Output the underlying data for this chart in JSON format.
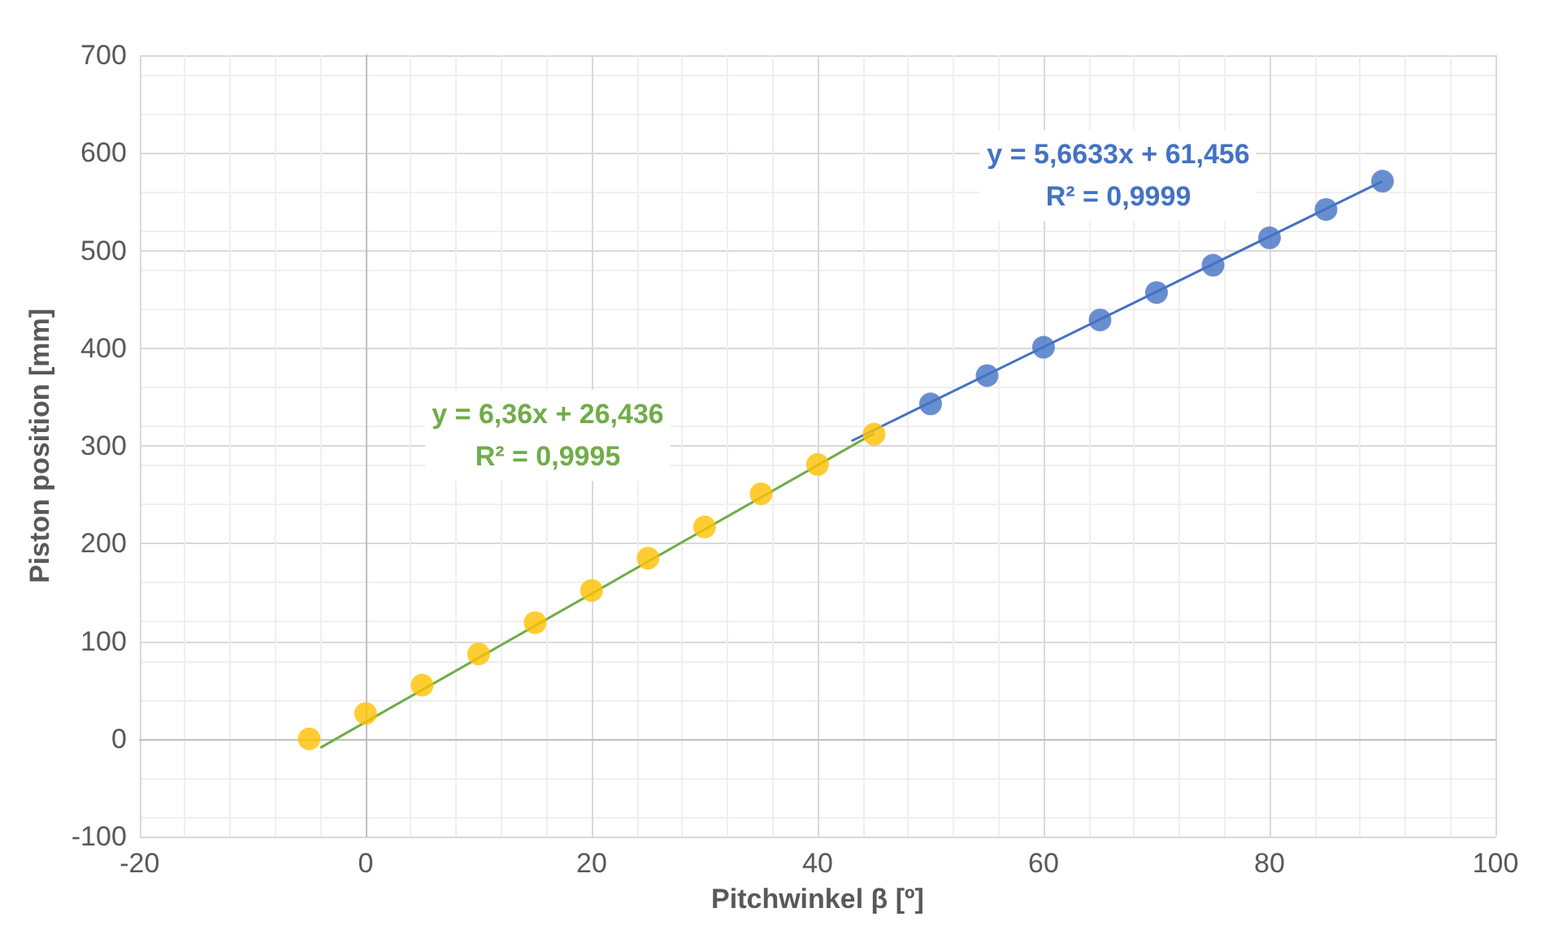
{
  "chart_data": {
    "type": "scatter",
    "xlabel": "Pitchwinkel β [º]",
    "ylabel": "Piston position [mm]",
    "xlim": [
      -20,
      100
    ],
    "xticks": [
      -20,
      0,
      20,
      40,
      60,
      80,
      100
    ],
    "ylim": [
      -100,
      700
    ],
    "yticks": [
      -100,
      0,
      100,
      200,
      300,
      400,
      500,
      600,
      700
    ],
    "grid": true,
    "marker": "circle",
    "series": [
      {
        "color": "#ffc000",
        "x": [
          -5,
          0,
          5,
          10,
          15,
          20,
          25,
          30,
          35,
          40,
          45
        ],
        "values": [
          0,
          26,
          55,
          87,
          119,
          152,
          185,
          217,
          251,
          281,
          312
        ]
      },
      {
        "color": "#4472c4",
        "x": [
          50,
          55,
          60,
          65,
          70,
          75,
          80,
          85,
          90
        ],
        "values": [
          343,
          372,
          401,
          429,
          457,
          485,
          513,
          542,
          571
        ]
      },
      {
        "type": "line",
        "color": "#70ad47",
        "marker": "none",
        "x": [
          -4,
          45
        ],
        "values": [
          -9,
          313
        ]
      },
      {
        "type": "line",
        "color": "#4472c4",
        "marker": "none",
        "x": [
          43,
          90
        ],
        "values": [
          305,
          571
        ]
      }
    ],
    "annotations": [
      "y = 6,36x + 26,436\nR² = 0,9995",
      "y = 5,6633x + 61,456\nR² = 0,9999"
    ]
  }
}
